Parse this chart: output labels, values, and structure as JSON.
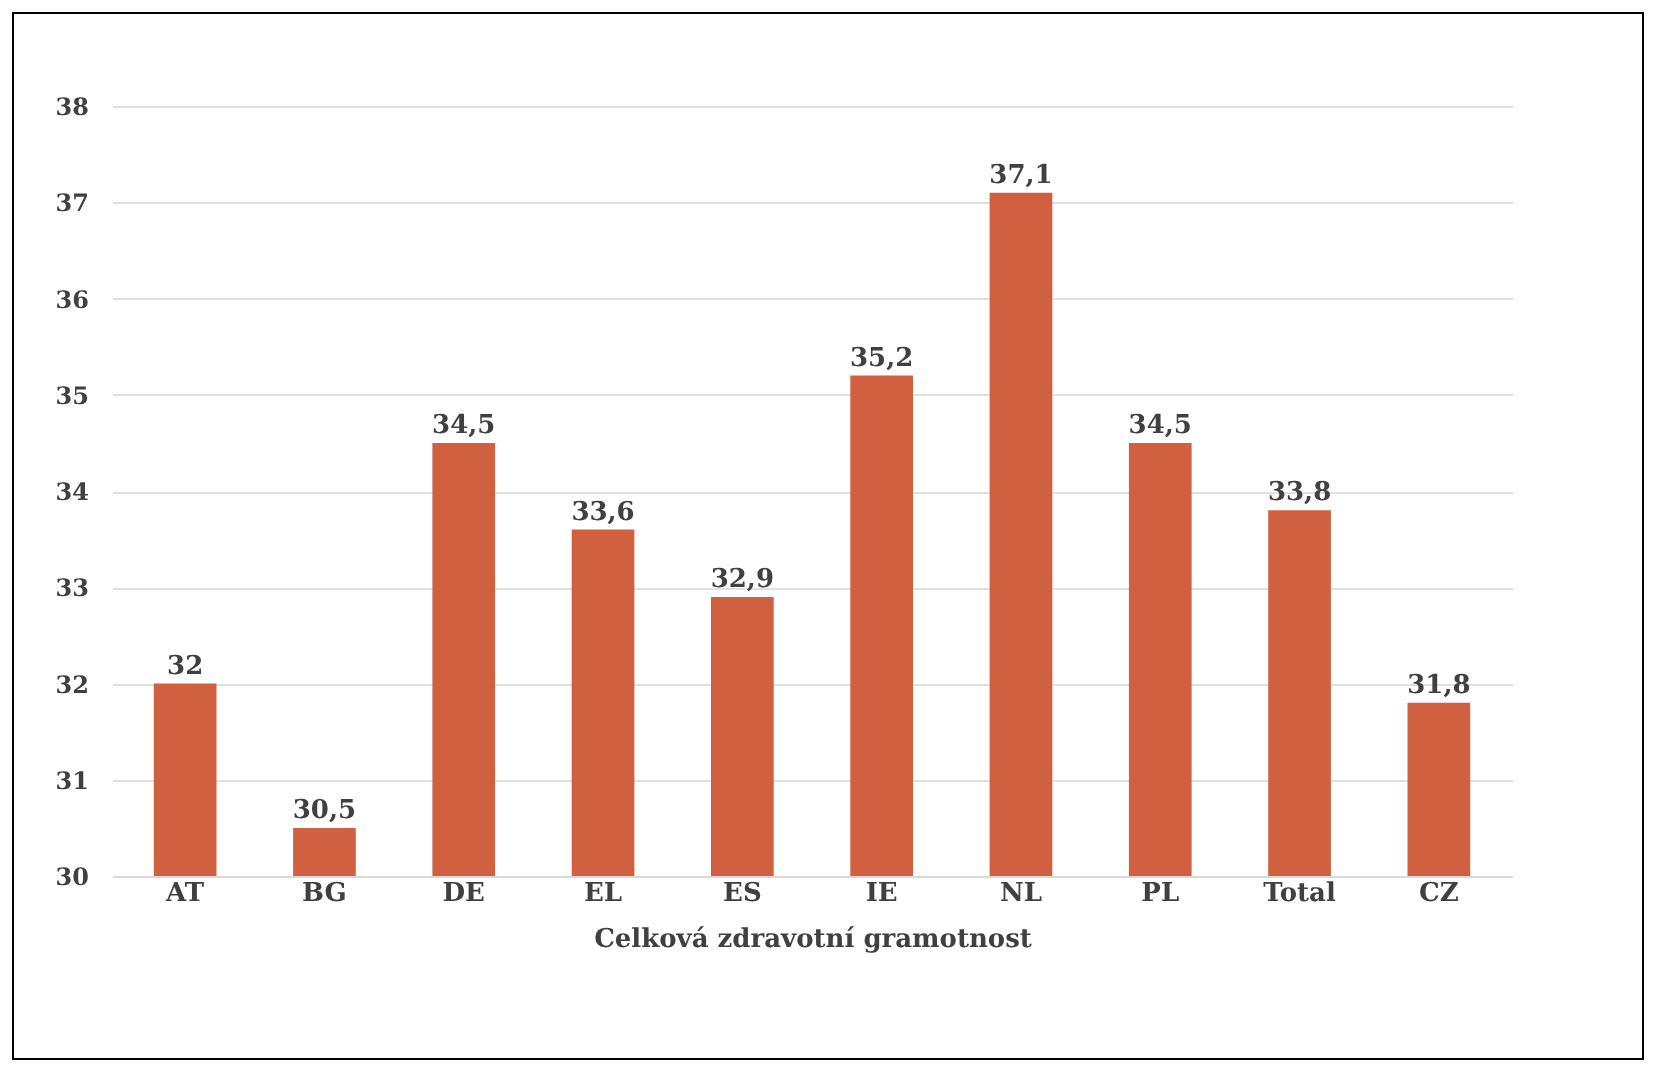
{
  "chart_data": {
    "type": "bar",
    "xlabel": "Celková zdravotní gramotnost",
    "categories": [
      "AT",
      "BG",
      "DE",
      "EL",
      "ES",
      "IE",
      "NL",
      "PL",
      "Total",
      "CZ"
    ],
    "values": [
      32,
      30.5,
      34.5,
      33.6,
      32.9,
      35.2,
      37.1,
      34.5,
      33.8,
      31.8
    ],
    "value_labels": [
      "32",
      "30,5",
      "34,5",
      "33,6",
      "32,9",
      "35,2",
      "37,1",
      "34,5",
      "33,8",
      "31,8"
    ],
    "color": "#d0603f",
    "ylim": [
      30,
      38
    ],
    "yticks": [
      30,
      31,
      32,
      33,
      34,
      35,
      36,
      37,
      38
    ],
    "grid": "y"
  }
}
